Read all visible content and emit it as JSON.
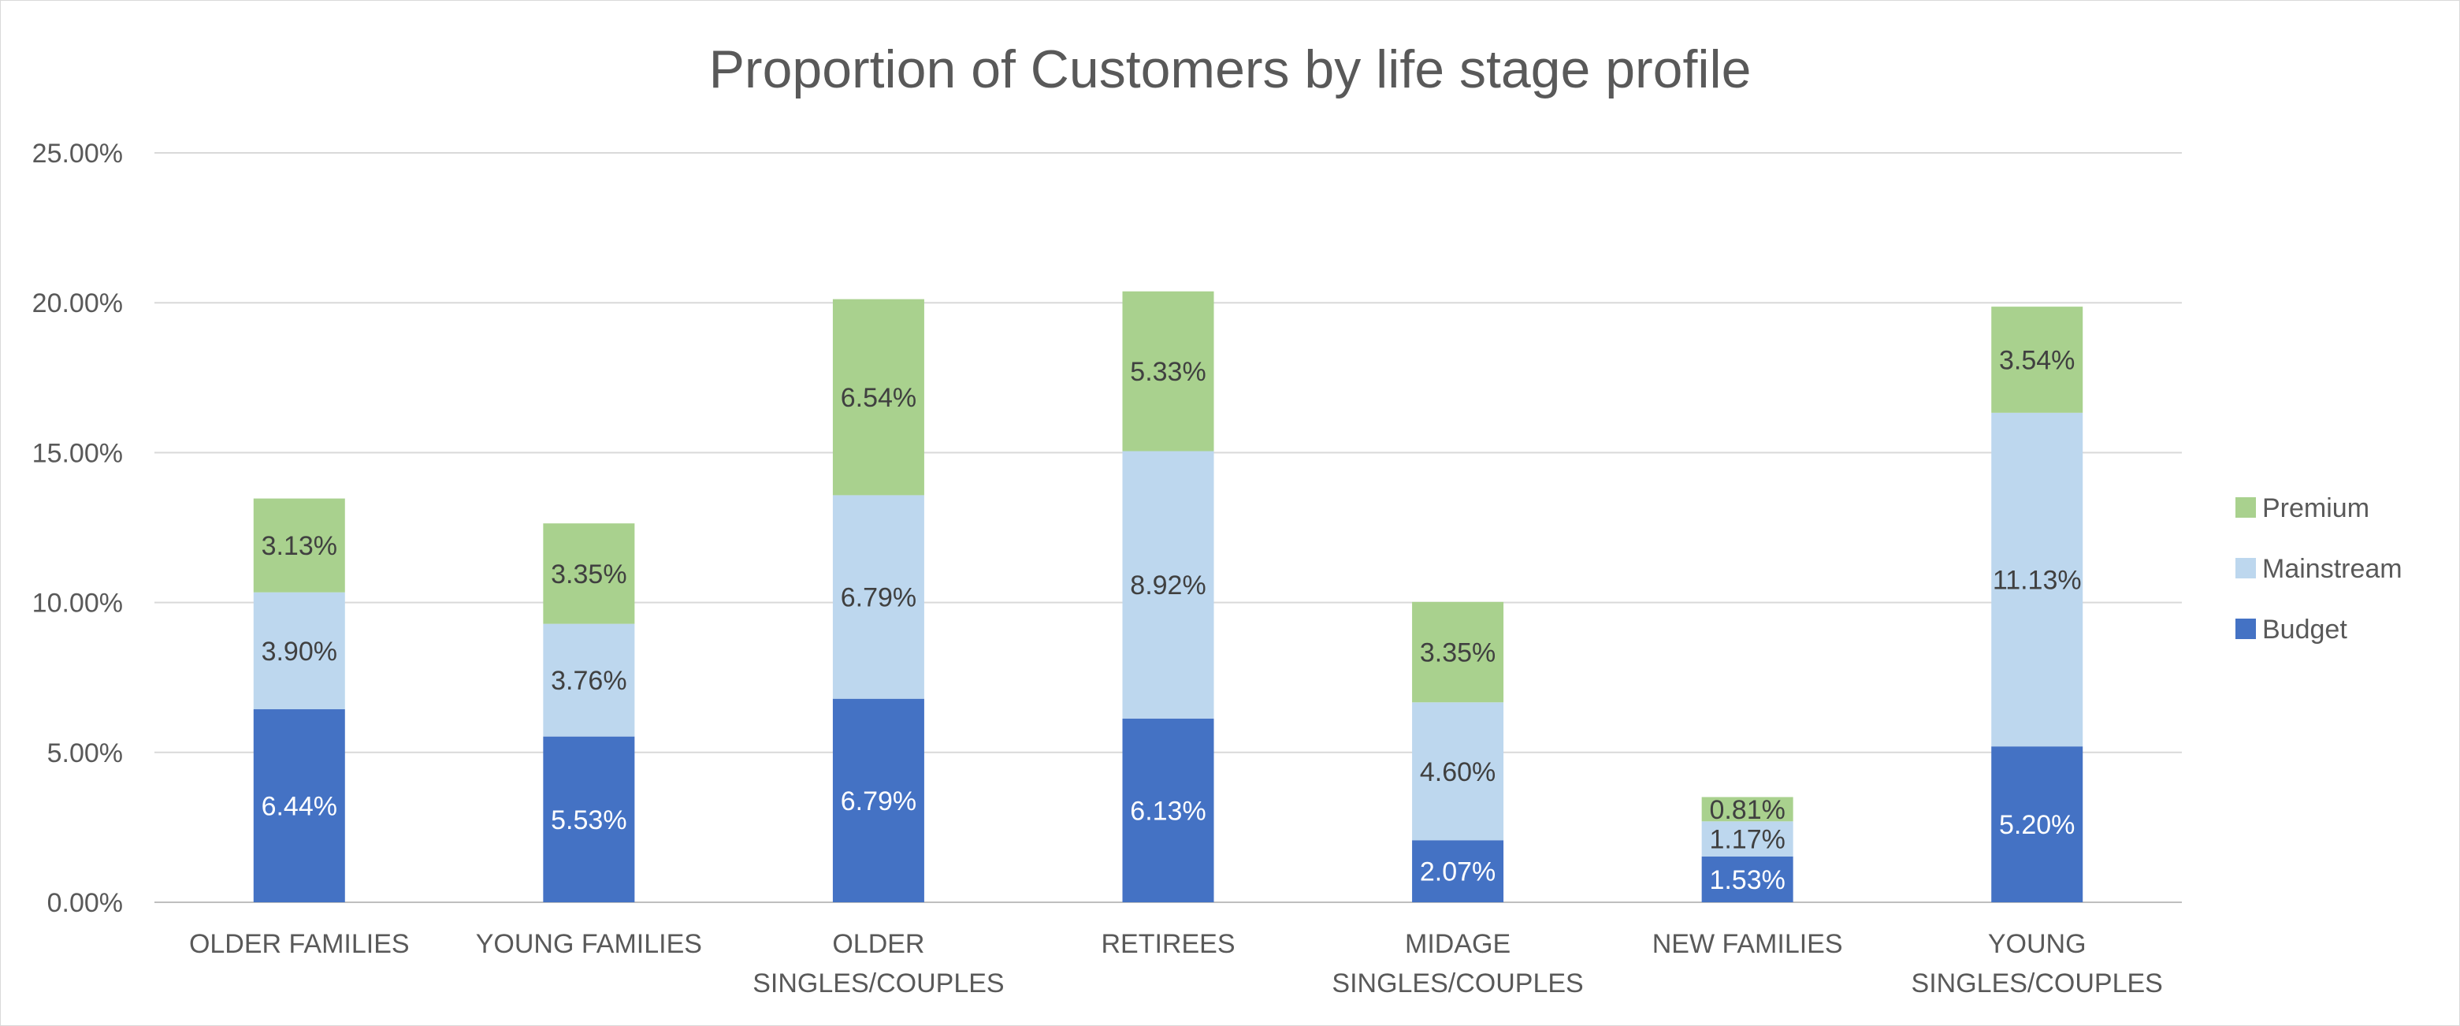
{
  "chart_data": {
    "type": "bar",
    "stacked": true,
    "title": "Proportion of Customers by life stage profile",
    "xlabel": "",
    "ylabel": "",
    "ylim": [
      0,
      25
    ],
    "yticks": [
      "0.00%",
      "5.00%",
      "10.00%",
      "15.00%",
      "20.00%",
      "25.00%"
    ],
    "grid": true,
    "legend_position": "right",
    "categories": [
      "OLDER FAMILIES",
      "YOUNG FAMILIES",
      "OLDER SINGLES/COUPLES",
      "RETIREES",
      "MIDAGE SINGLES/COUPLES",
      "NEW FAMILIES",
      "YOUNG SINGLES/COUPLES"
    ],
    "category_lines": [
      [
        "OLDER FAMILIES"
      ],
      [
        "YOUNG FAMILIES"
      ],
      [
        "OLDER",
        "SINGLES/COUPLES"
      ],
      [
        "RETIREES"
      ],
      [
        "MIDAGE",
        "SINGLES/COUPLES"
      ],
      [
        "NEW FAMILIES"
      ],
      [
        "YOUNG",
        "SINGLES/COUPLES"
      ]
    ],
    "series": [
      {
        "name": "Budget",
        "color": "#4472c4",
        "label_color": "#ffffff",
        "values": [
          6.44,
          5.53,
          6.79,
          6.13,
          2.07,
          1.53,
          5.2
        ],
        "labels": [
          "6.44%",
          "5.53%",
          "6.79%",
          "6.13%",
          "2.07%",
          "1.53%",
          "5.20%"
        ]
      },
      {
        "name": "Mainstream",
        "color": "#bdd7ee",
        "label_color": "#404040",
        "values": [
          3.9,
          3.76,
          6.79,
          8.92,
          4.6,
          1.17,
          11.13
        ],
        "labels": [
          "3.90%",
          "3.76%",
          "6.79%",
          "8.92%",
          "4.60%",
          "1.17%",
          "11.13%"
        ]
      },
      {
        "name": "Premium",
        "color": "#a9d18e",
        "label_color": "#404040",
        "values": [
          3.13,
          3.35,
          6.54,
          5.33,
          3.35,
          0.81,
          3.54
        ],
        "labels": [
          "3.13%",
          "3.35%",
          "6.54%",
          "5.33%",
          "3.35%",
          "0.81%",
          "3.54%"
        ]
      }
    ],
    "legend_order": [
      "Premium",
      "Mainstream",
      "Budget"
    ],
    "colors": {
      "grid": "#d9d9d9",
      "axis": "#bfbfbf",
      "text": "#595959"
    }
  }
}
